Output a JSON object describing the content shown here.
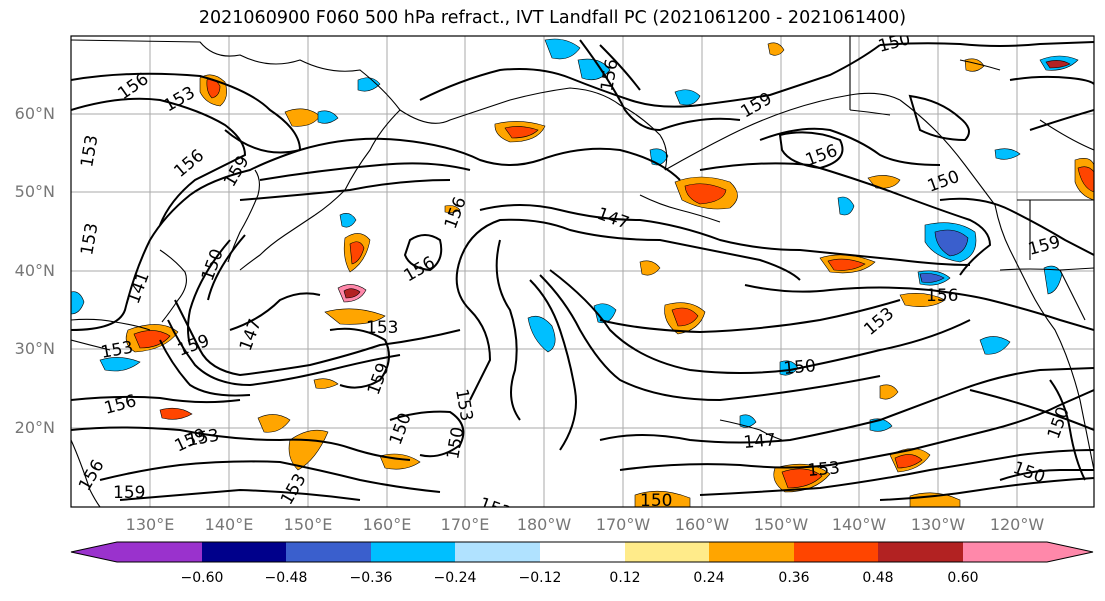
{
  "title": "2021060900 F060 500 hPa refract., IVT Landfall PC (2021061200 - 2021061400)",
  "map": {
    "lat_labels": [
      "60°N",
      "50°N",
      "40°N",
      "30°N",
      "20°N"
    ],
    "lon_labels": [
      "130°E",
      "140°E",
      "150°E",
      "160°E",
      "170°E",
      "180°W",
      "170°W",
      "160°W",
      "150°W",
      "140°W",
      "130°W",
      "120°W"
    ],
    "contour_labels": [
      "156",
      "153",
      "153",
      "156",
      "159",
      "150",
      "147",
      "153",
      "141",
      "159",
      "153",
      "156",
      "159",
      "153",
      "156",
      "153",
      "159",
      "156",
      "150",
      "153",
      "159",
      "156",
      "156",
      "153",
      "150",
      "147",
      "147",
      "153",
      "150",
      "159",
      "150",
      "156",
      "150",
      "153",
      "156",
      "159",
      "150",
      "150",
      "153",
      "150"
    ],
    "land_color": "#000000",
    "grid": true
  },
  "colorbar": {
    "tick_labels": [
      "−0.60",
      "−0.48",
      "−0.36",
      "−0.24",
      "−0.12",
      "0.12",
      "0.24",
      "0.36",
      "0.48",
      "0.60"
    ],
    "colors": [
      "#9a32cd",
      "#00008b",
      "#3a5fcd",
      "#00bfff",
      "#b0e2ff",
      "#ffffff",
      "#ffeb8a",
      "#ffa500",
      "#ff4500",
      "#b22222",
      "#ff88aa"
    ]
  }
}
